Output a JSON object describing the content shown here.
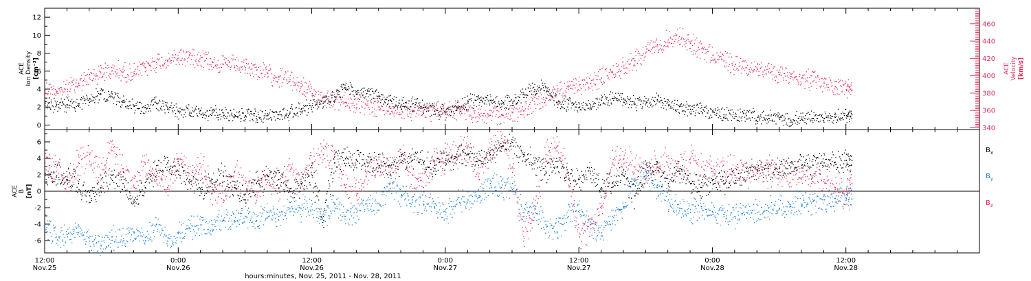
{
  "chart_data": [
    {
      "type": "scatter",
      "panel": "top",
      "xlabel": "hours:minutes, Nov. 25, 2011 - Nov. 28, 2011",
      "x_range_hours_since_Nov25_12_00": [
        0,
        84
      ],
      "x_ticks": [
        {
          "hours": 0,
          "time": "12:00",
          "date": "Nov.25"
        },
        {
          "hours": 12,
          "time": "0:00",
          "date": "Nov.26"
        },
        {
          "hours": 24,
          "time": "12:00",
          "date": "Nov.26"
        },
        {
          "hours": 36,
          "time": "0:00",
          "date": "Nov.27"
        },
        {
          "hours": 48,
          "time": "12:00",
          "date": "Nov.27"
        },
        {
          "hours": 60,
          "time": "0:00",
          "date": "Nov.28"
        },
        {
          "hours": 72,
          "time": "12:00",
          "date": "Nov.28"
        }
      ],
      "left_axis": {
        "label_lines": [
          "ACE",
          "Ion Density",
          "[cm⁻³]"
        ],
        "ylim": [
          -0.5,
          13
        ],
        "ticks": [
          0,
          2,
          4,
          6,
          8,
          10,
          12
        ],
        "color": "#000000"
      },
      "right_axis": {
        "label_lines": [
          "ACE",
          "Velocity",
          "[km/s]"
        ],
        "ylim": [
          338,
          478
        ],
        "ticks": [
          340,
          360,
          380,
          400,
          420,
          440,
          460
        ],
        "color": "#e0305a"
      },
      "series": [
        {
          "name": "Ion Density",
          "axis": "left",
          "color": "#000000",
          "x": [
            0,
            1,
            2,
            3,
            4,
            5,
            6,
            7,
            8,
            9,
            10,
            11,
            12,
            13,
            14,
            15,
            16,
            17,
            18,
            19,
            20,
            21,
            22,
            23,
            24,
            25,
            26,
            27,
            28,
            29,
            30,
            31,
            32,
            33,
            34,
            35,
            36,
            37,
            38,
            39,
            40,
            41,
            42,
            43,
            44,
            45,
            46,
            47,
            48,
            49,
            50,
            51,
            52,
            53,
            54,
            55,
            56,
            57,
            58,
            59,
            60,
            61,
            62,
            63,
            64,
            65,
            66,
            67,
            68,
            69,
            70,
            71,
            72,
            72.5
          ],
          "y": [
            2.5,
            2.2,
            2.3,
            2.4,
            3.0,
            3.5,
            3.2,
            2.6,
            2.2,
            2.0,
            2.5,
            1.8,
            1.6,
            1.5,
            1.2,
            1.3,
            1.4,
            1.2,
            1.1,
            1.0,
            1.1,
            1.2,
            1.5,
            1.8,
            2.2,
            2.5,
            3.2,
            4.2,
            3.5,
            3.8,
            3.2,
            2.8,
            2.3,
            2.4,
            2.0,
            1.6,
            1.5,
            2.0,
            2.5,
            3.0,
            2.8,
            2.4,
            2.5,
            3.5,
            4.0,
            4.2,
            2.6,
            2.4,
            2.0,
            2.3,
            2.8,
            3.0,
            2.6,
            2.4,
            2.5,
            2.9,
            2.2,
            2.1,
            1.8,
            2.0,
            1.5,
            1.2,
            1.0,
            1.1,
            0.9,
            0.8,
            0.7,
            0.6,
            0.7,
            0.8,
            0.8,
            0.9,
            1.1,
            1.2
          ]
        },
        {
          "name": "Velocity",
          "axis": "right",
          "color": "#e0305a",
          "x": [
            0,
            1,
            2,
            3,
            4,
            5,
            6,
            7,
            8,
            9,
            10,
            11,
            12,
            13,
            14,
            15,
            16,
            17,
            18,
            19,
            20,
            21,
            22,
            23,
            24,
            25,
            26,
            27,
            28,
            29,
            30,
            31,
            32,
            33,
            34,
            35,
            36,
            37,
            38,
            39,
            40,
            41,
            42,
            43,
            44,
            45,
            46,
            47,
            48,
            49,
            50,
            51,
            52,
            53,
            54,
            55,
            56,
            57,
            58,
            59,
            60,
            61,
            62,
            63,
            64,
            65,
            66,
            67,
            68,
            69,
            70,
            71,
            72,
            72.5
          ],
          "y": [
            384,
            383,
            385,
            392,
            398,
            404,
            406,
            405,
            403,
            410,
            416,
            418,
            421,
            424,
            422,
            417,
            414,
            412,
            410,
            407,
            403,
            399,
            396,
            388,
            380,
            376,
            372,
            370,
            368,
            366,
            364,
            363,
            362,
            361,
            360,
            360,
            361,
            362,
            360,
            356,
            355,
            356,
            358,
            360,
            368,
            375,
            382,
            385,
            390,
            392,
            398,
            404,
            412,
            418,
            428,
            436,
            442,
            446,
            438,
            432,
            424,
            418,
            414,
            410,
            408,
            405,
            402,
            400,
            398,
            394,
            392,
            388,
            384,
            384
          ]
        }
      ]
    },
    {
      "type": "scatter",
      "panel": "bottom",
      "xlabel": "hours:minutes, Nov. 25, 2011 - Nov. 28, 2011",
      "x_range_hours_since_Nov25_12_00": [
        0,
        84
      ],
      "left_axis": {
        "label_lines": [
          "ACE",
          "B",
          "[nT]"
        ],
        "ylim": [
          -7.5,
          7.5
        ],
        "ticks": [
          -6,
          -4,
          -2,
          0,
          2,
          4,
          6
        ],
        "color": "#000000"
      },
      "zero_line": true,
      "series": [
        {
          "name": "Bx",
          "label_base": "B",
          "label_sub": "x",
          "color": "#000000",
          "x": [
            0,
            1,
            2,
            3,
            4,
            5,
            6,
            7,
            8,
            9,
            10,
            11,
            12,
            13,
            14,
            15,
            16,
            17,
            18,
            19,
            20,
            21,
            22,
            23,
            24,
            25,
            26,
            27,
            28,
            29,
            30,
            31,
            32,
            33,
            34,
            35,
            36,
            37,
            38,
            39,
            40,
            41,
            42,
            43,
            44,
            45,
            46,
            47,
            48,
            49,
            50,
            51,
            52,
            53,
            54,
            55,
            56,
            57,
            58,
            59,
            60,
            61,
            62,
            63,
            64,
            65,
            66,
            67,
            68,
            69,
            70,
            71,
            72,
            72.5
          ],
          "y": [
            2.0,
            1.8,
            1.5,
            1.0,
            -0.5,
            0.5,
            2.0,
            1.0,
            -1.0,
            0.5,
            2.5,
            3.5,
            2.5,
            1.5,
            0.0,
            1.0,
            2.0,
            0.5,
            -1.0,
            1.0,
            2.0,
            1.5,
            0.0,
            1.0,
            2.0,
            -3.0,
            3.5,
            4.0,
            3.8,
            3.5,
            3.2,
            3.0,
            3.6,
            3.8,
            3.5,
            3.2,
            3.8,
            4.2,
            4.5,
            3.8,
            4.5,
            5.5,
            6.0,
            4.5,
            3.5,
            2.5,
            3.0,
            2.0,
            1.5,
            2.5,
            0.5,
            1.0,
            2.0,
            -0.5,
            2.5,
            3.0,
            1.0,
            2.5,
            1.0,
            0.5,
            1.5,
            1.0,
            2.0,
            2.5,
            2.5,
            2.8,
            3.0,
            3.0,
            3.2,
            3.2,
            3.5,
            3.6,
            3.8,
            3.8
          ]
        },
        {
          "name": "By",
          "label_base": "B",
          "label_sub": "y",
          "color": "#1a7fdb",
          "x": [
            0,
            1,
            2,
            3,
            4,
            5,
            6,
            7,
            8,
            9,
            10,
            11,
            12,
            13,
            14,
            15,
            16,
            17,
            18,
            19,
            20,
            21,
            22,
            23,
            24,
            25,
            26,
            27,
            28,
            29,
            30,
            31,
            32,
            33,
            34,
            35,
            36,
            37,
            38,
            39,
            40,
            41,
            42,
            43,
            44,
            45,
            46,
            47,
            48,
            49,
            50,
            51,
            52,
            53,
            54,
            55,
            56,
            57,
            58,
            59,
            60,
            61,
            62,
            63,
            64,
            65,
            66,
            67,
            68,
            69,
            70,
            71,
            72,
            72.5
          ],
          "y": [
            -4.0,
            -5.5,
            -5.5,
            -5.0,
            -6.0,
            -6.5,
            -5.5,
            -6.0,
            -5.0,
            -6.0,
            -4.0,
            -6.0,
            -5.0,
            -4.5,
            -4.0,
            -4.0,
            -3.5,
            -3.5,
            -3.0,
            -3.5,
            -2.5,
            -3.0,
            -2.0,
            -2.0,
            -1.5,
            -3.5,
            -1.5,
            -3.0,
            -2.5,
            -1.0,
            -1.5,
            1.0,
            -0.5,
            -1.0,
            -1.5,
            -2.0,
            -2.5,
            -1.5,
            -1.0,
            -0.5,
            1.0,
            0.5,
            1.0,
            -3.0,
            -2.0,
            -4.0,
            -5.0,
            -3.0,
            -2.5,
            -4.0,
            -5.0,
            -3.0,
            -2.0,
            1.5,
            2.0,
            0.5,
            -1.0,
            -2.0,
            -2.5,
            -2.0,
            -2.5,
            -3.0,
            -3.0,
            -2.5,
            -2.5,
            -2.0,
            -2.0,
            -1.8,
            -1.5,
            -1.2,
            -1.0,
            -0.8,
            -0.8,
            -0.9
          ]
        },
        {
          "name": "Bz",
          "label_base": "B",
          "label_sub": "z",
          "color": "#e0305a",
          "x": [
            0,
            1,
            2,
            3,
            4,
            5,
            6,
            7,
            8,
            9,
            10,
            11,
            12,
            13,
            14,
            15,
            16,
            17,
            18,
            19,
            20,
            21,
            22,
            23,
            24,
            25,
            26,
            27,
            28,
            29,
            30,
            31,
            32,
            33,
            34,
            35,
            36,
            37,
            38,
            39,
            40,
            41,
            42,
            43,
            44,
            45,
            46,
            47,
            48,
            49,
            50,
            51,
            52,
            53,
            54,
            55,
            56,
            57,
            58,
            59,
            60,
            61,
            62,
            63,
            64,
            65,
            66,
            67,
            68,
            69,
            70,
            71,
            72,
            72.5
          ],
          "y": [
            3.5,
            2.5,
            1.0,
            3.5,
            4.5,
            2.0,
            5.0,
            2.5,
            0.5,
            3.5,
            2.0,
            0.5,
            4.0,
            1.5,
            3.0,
            0.5,
            -1.0,
            2.5,
            1.0,
            0.0,
            2.0,
            0.5,
            2.5,
            1.0,
            3.5,
            4.5,
            4.5,
            0.5,
            -0.5,
            2.5,
            3.0,
            2.5,
            4.5,
            2.0,
            0.5,
            3.5,
            4.0,
            4.5,
            5.5,
            1.5,
            5.0,
            6.5,
            3.0,
            -6.0,
            -2.0,
            4.5,
            5.5,
            2.0,
            -5.5,
            -4.0,
            -2.0,
            3.5,
            4.0,
            3.0,
            2.5,
            3.5,
            3.0,
            2.8,
            3.5,
            3.0,
            2.5,
            2.5,
            2.8,
            2.5,
            2.2,
            2.5,
            2.4,
            2.2,
            2.5,
            2.0,
            1.5,
            0.5,
            0.0,
            1.0
          ]
        }
      ]
    }
  ]
}
